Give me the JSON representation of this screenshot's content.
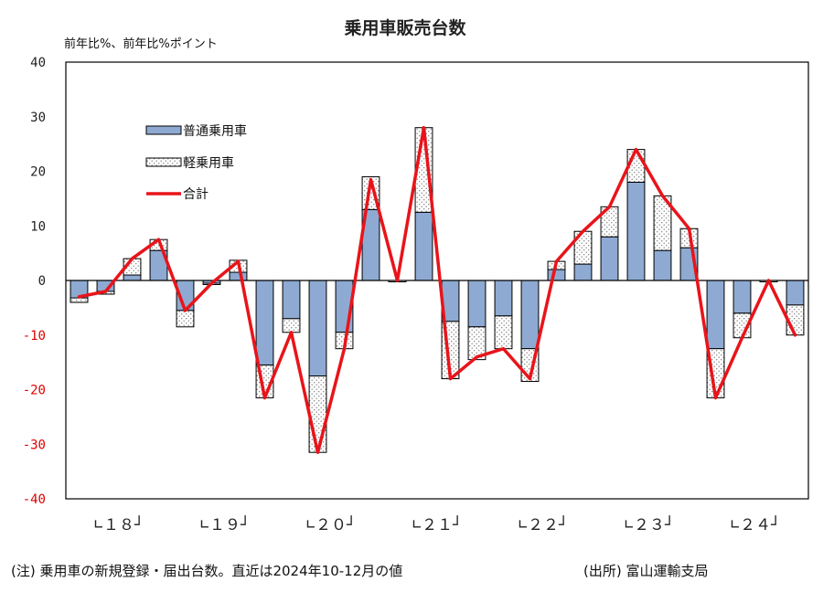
{
  "chart_data": {
    "type": "bar",
    "title": "乗用車販売台数",
    "ylabel": "前年比%、前年比%ポイント",
    "ylim": [
      -40,
      40
    ],
    "yticks": [
      40,
      30,
      20,
      10,
      0,
      -10,
      -20,
      -30,
      -40
    ],
    "positive_tick_color": "#222222",
    "negative_tick_color": "#e00000",
    "year_groups": [
      {
        "label": "∟１８┘",
        "quarters": 4
      },
      {
        "label": "∟１９┘",
        "quarters": 4
      },
      {
        "label": "∟２０┘",
        "quarters": 4
      },
      {
        "label": "∟２１┘",
        "quarters": 4
      },
      {
        "label": "∟２２┘",
        "quarters": 4
      },
      {
        "label": "∟２３┘",
        "quarters": 4
      },
      {
        "label": "∟２４┘",
        "quarters": 4
      }
    ],
    "series": [
      {
        "name": "普通乗用車",
        "kind": "bar",
        "color": "#8eaad2",
        "values": [
          -4,
          -2.5,
          1,
          5.5,
          -5.5,
          -0.5,
          1.5,
          -15.5,
          -7,
          -17.5,
          -9.5,
          13,
          0,
          12.5,
          -7.5,
          -8.5,
          -6.5,
          -12.5,
          2,
          3,
          8,
          18,
          5.5,
          6,
          -12.5,
          -6,
          0,
          -4.5
        ]
      },
      {
        "name": "軽乗用車",
        "kind": "bar",
        "pattern": "dots",
        "values": [
          0.8,
          0.5,
          3,
          2,
          -3,
          0,
          2.2,
          -6,
          -2.5,
          -14,
          -3,
          6,
          0,
          15.5,
          -10.5,
          -6,
          -6,
          -6,
          1.5,
          6,
          5.5,
          6,
          10,
          3.5,
          -9,
          -4.5,
          0,
          -5.5
        ]
      },
      {
        "name": "合計",
        "kind": "line",
        "color": "#e8141a",
        "values": [
          -3,
          -2,
          4,
          7.5,
          -5.5,
          -0.5,
          3.5,
          -21.5,
          -9.5,
          -31.5,
          -12.5,
          18.5,
          0,
          28,
          -18,
          -14,
          -12.5,
          -18,
          3.5,
          9,
          13.5,
          24,
          15.5,
          9.5,
          -21.5,
          -10.5,
          0,
          -10
        ]
      }
    ],
    "legend_position": "top-left",
    "footnote_left": "(注) 乗用車の新規登録・届出台数。直近は2024年10-12月の値",
    "footnote_right": "(出所) 富山運輸支局"
  }
}
